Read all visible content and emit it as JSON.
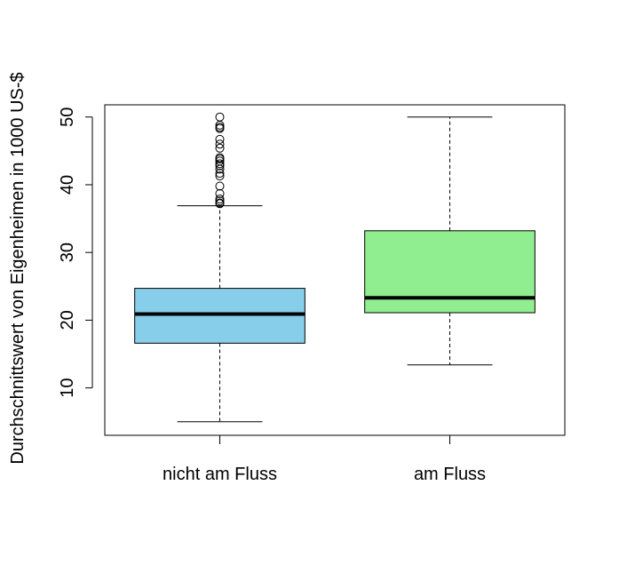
{
  "chart_data": {
    "type": "boxplot",
    "title": "",
    "xlabel": "",
    "ylabel": "Durchschnittswert von Eigenheimen in 1000 US-$",
    "categories": [
      "nicht am Fluss",
      "am Fluss"
    ],
    "ylim": [
      3.0,
      51.8
    ],
    "yticks": [
      10,
      20,
      30,
      40,
      50
    ],
    "grid": false,
    "boxes": [
      {
        "label": "nicht am Fluss",
        "color": "#87CEEB",
        "whisker_low": 5.0,
        "q1": 16.6,
        "median": 20.9,
        "q3": 24.7,
        "whisker_high": 36.9,
        "outliers": [
          37.2,
          37.3,
          37.6,
          37.9,
          38.7,
          39.8,
          41.3,
          41.7,
          42.3,
          42.8,
          43.1,
          43.5,
          43.8,
          44.0,
          45.4,
          46.0,
          46.7,
          48.3,
          48.5,
          48.8,
          50.0
        ]
      },
      {
        "label": "am Fluss",
        "color": "#90EE90",
        "whisker_low": 13.4,
        "q1": 21.1,
        "median": 23.3,
        "q3": 33.2,
        "whisker_high": 50.0,
        "outliers": []
      }
    ]
  }
}
